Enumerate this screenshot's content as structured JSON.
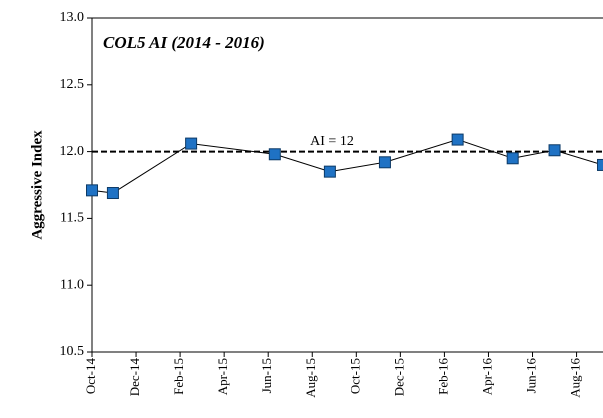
{
  "chart_data": {
    "type": "line",
    "title": "COL5 AI (2014 - 2016)",
    "y_label": "Aggressive Index",
    "x": [
      0,
      0.95,
      4.5,
      8.3,
      10.8,
      13.3,
      16.6,
      19.1,
      21,
      23.2
    ],
    "series": [
      {
        "name": "AI",
        "color": "#1f72c4",
        "values": [
          11.71,
          11.69,
          12.06,
          11.98,
          11.85,
          11.92,
          12.09,
          11.95,
          12.01,
          11.9
        ]
      }
    ],
    "reference": {
      "value": 12,
      "label": "AI = 12"
    },
    "xlim": [
      0,
      23.2
    ],
    "xticks": [
      {
        "value": 0,
        "label": "Oct-14"
      },
      {
        "value": 2,
        "label": "Dec-14"
      },
      {
        "value": 4,
        "label": "Feb-15"
      },
      {
        "value": 6,
        "label": "Apr-15"
      },
      {
        "value": 8,
        "label": "Jun-15"
      },
      {
        "value": 10,
        "label": "Aug-15"
      },
      {
        "value": 12,
        "label": "Oct-15"
      },
      {
        "value": 14,
        "label": "Dec-15"
      },
      {
        "value": 16,
        "label": "Feb-16"
      },
      {
        "value": 18,
        "label": "Apr-16"
      },
      {
        "value": 20,
        "label": "Jun-16"
      },
      {
        "value": 22,
        "label": "Aug-16"
      }
    ],
    "ylim": [
      10.5,
      13
    ],
    "yticks": [
      10.5,
      {
        "value": 11,
        "label": "11.0"
      },
      11.5,
      {
        "value": 12,
        "label": "12.0"
      },
      12.5,
      {
        "value": 13,
        "label": "13.0"
      }
    ],
    "grid": false
  }
}
